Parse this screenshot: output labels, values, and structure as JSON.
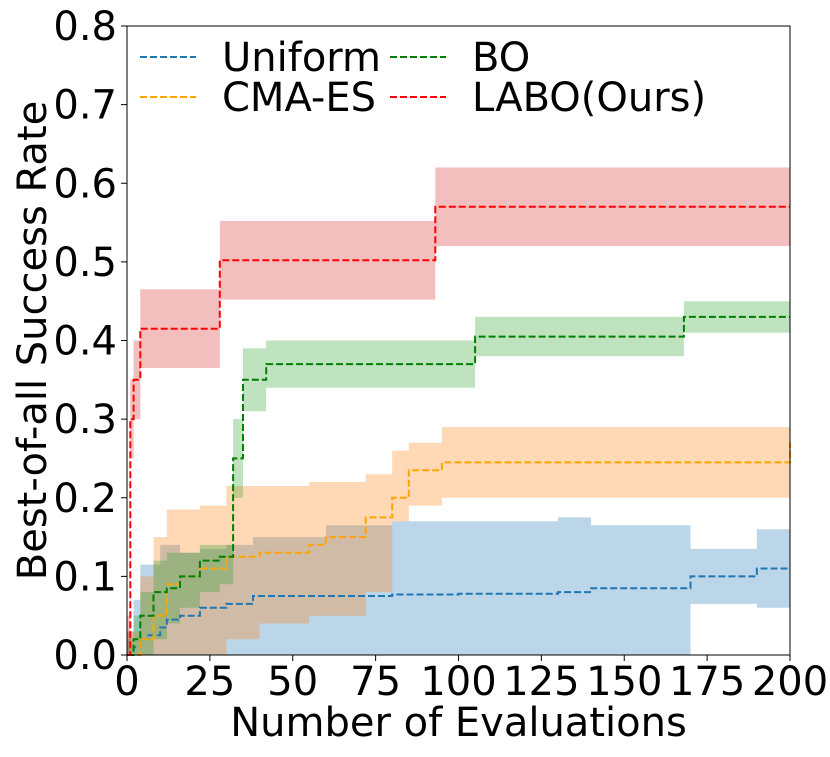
{
  "chart_data": {
    "type": "line",
    "title": "",
    "xlabel": "Number of Evaluations",
    "ylabel": "Best-of-all Success Rate",
    "xlim": [
      0,
      200
    ],
    "ylim": [
      0,
      0.8
    ],
    "xticks": [
      0,
      25,
      50,
      75,
      100,
      125,
      150,
      175,
      200
    ],
    "xtick_labels": [
      "0",
      "25",
      "50",
      "75",
      "100",
      "125",
      "150",
      "175",
      "200"
    ],
    "yticks": [
      0,
      0.1,
      0.2,
      0.3,
      0.4,
      0.5,
      0.6,
      0.7,
      0.8
    ],
    "ytick_labels": [
      "0.0",
      "0.1",
      "0.2",
      "0.3",
      "0.4",
      "0.5",
      "0.6",
      "0.7",
      "0.8"
    ],
    "grid": false,
    "legend": {
      "placement": "top-left",
      "columns": 2
    },
    "series": [
      {
        "name": "Uniform",
        "color": "#1f77b4",
        "fill_color": "#1f77b4",
        "x": [
          0,
          2,
          4,
          6,
          10,
          12,
          16,
          22,
          30,
          38,
          60,
          80,
          100,
          130,
          140,
          170,
          190,
          200
        ],
        "y": [
          0,
          0.01,
          0.02,
          0.025,
          0.035,
          0.045,
          0.05,
          0.06,
          0.065,
          0.075,
          0.075,
          0.077,
          0.078,
          0.08,
          0.085,
          0.1,
          0.11,
          0.11
        ],
        "lower": [
          0,
          0,
          0,
          0,
          0,
          0,
          0,
          0,
          0,
          0,
          0,
          0,
          0,
          0,
          0,
          0.065,
          0.06,
          0.06
        ],
        "upper": [
          0.03,
          0.07,
          0.115,
          0.115,
          0.14,
          0.14,
          0.13,
          0.135,
          0.14,
          0.15,
          0.165,
          0.17,
          0.17,
          0.175,
          0.165,
          0.135,
          0.16,
          0.16
        ]
      },
      {
        "name": "CMA-ES",
        "color": "#ffa500",
        "fill_color": "#ff7f0e",
        "x": [
          0,
          4,
          8,
          12,
          16,
          22,
          30,
          40,
          55,
          60,
          72,
          80,
          85,
          95,
          150,
          199,
          200
        ],
        "y": [
          0,
          0.02,
          0.05,
          0.09,
          0.1,
          0.11,
          0.125,
          0.13,
          0.14,
          0.15,
          0.175,
          0.2,
          0.235,
          0.245,
          0.245,
          0.245,
          0.27
        ],
        "lower": [
          0,
          0,
          0,
          0,
          0,
          0,
          0.02,
          0.04,
          0.05,
          0.05,
          0.08,
          0.17,
          0.19,
          0.2,
          0.2,
          0.2,
          0.2
        ],
        "upper": [
          0.03,
          0.1,
          0.15,
          0.185,
          0.185,
          0.19,
          0.215,
          0.215,
          0.22,
          0.22,
          0.23,
          0.26,
          0.27,
          0.29,
          0.29,
          0.29,
          0.29
        ]
      },
      {
        "name": "BO",
        "color": "#008000",
        "fill_color": "#2ca02c",
        "x": [
          0,
          2,
          4,
          8,
          12,
          16,
          22,
          28,
          32,
          35,
          42,
          105,
          168,
          200
        ],
        "y": [
          0,
          0.02,
          0.05,
          0.08,
          0.085,
          0.1,
          0.12,
          0.125,
          0.25,
          0.35,
          0.37,
          0.405,
          0.43,
          0.43
        ],
        "lower": [
          0,
          0,
          0,
          0.02,
          0.04,
          0.06,
          0.08,
          0.09,
          0.2,
          0.31,
          0.34,
          0.38,
          0.41,
          0.41
        ],
        "upper": [
          0.02,
          0.05,
          0.08,
          0.12,
          0.13,
          0.13,
          0.14,
          0.14,
          0.3,
          0.39,
          0.4,
          0.43,
          0.45,
          0.45
        ]
      },
      {
        "name": "LABO(Ours)",
        "color": "#ff0000",
        "fill_color": "#d62728",
        "x": [
          0,
          1,
          2,
          4,
          28,
          93,
          200
        ],
        "y": [
          0,
          0.3,
          0.35,
          0.415,
          0.502,
          0.57,
          0.57
        ],
        "lower": [
          0,
          0.25,
          0.3,
          0.365,
          0.452,
          0.52,
          0.52
        ],
        "upper": [
          0.05,
          0.35,
          0.4,
          0.465,
          0.552,
          0.62,
          0.62
        ]
      }
    ]
  }
}
